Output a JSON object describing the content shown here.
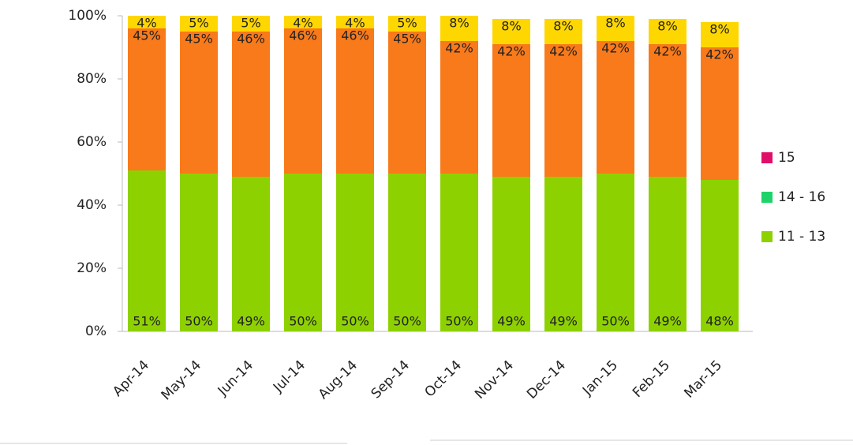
{
  "chart_data": {
    "type": "bar",
    "stacked": true,
    "categories": [
      "Apr-14",
      "May-14",
      "Jun-14",
      "Jul-14",
      "Aug-14",
      "Sep-14",
      "Oct-14",
      "Nov-14",
      "Dec-14",
      "Jan-15",
      "Feb-15",
      "Mar-15"
    ],
    "series": [
      {
        "color": "#8ed100",
        "values": [
          51,
          50,
          49,
          50,
          50,
          50,
          50,
          49,
          49,
          50,
          49,
          48
        ],
        "value_labels": [
          "51%",
          "50%",
          "49%",
          "50%",
          "50%",
          "50%",
          "50%",
          "49%",
          "49%",
          "50%",
          "49%",
          "48%"
        ]
      },
      {
        "color": "#f97a1a",
        "values": [
          45,
          45,
          46,
          46,
          46,
          45,
          42,
          42,
          42,
          42,
          42,
          42
        ],
        "value_labels": [
          "45%",
          "45%",
          "46%",
          "46%",
          "46%",
          "45%",
          "42%",
          "42%",
          "42%",
          "42%",
          "42%",
          "42%"
        ]
      },
      {
        "color": "#ffd700",
        "values": [
          4,
          5,
          5,
          4,
          4,
          5,
          8,
          8,
          8,
          8,
          8,
          8
        ],
        "value_labels": [
          "4%",
          "5%",
          "5%",
          "4%",
          "4%",
          "5%",
          "8%",
          "8%",
          "8%",
          "8%",
          "8%",
          "8%"
        ]
      }
    ],
    "ylim": [
      0,
      100
    ],
    "yticks": [
      {
        "value": 0,
        "label": "0%"
      },
      {
        "value": 20,
        "label": "20%"
      },
      {
        "value": 40,
        "label": "40%"
      },
      {
        "value": 60,
        "label": "60%"
      },
      {
        "value": 80,
        "label": "80%"
      },
      {
        "value": 100,
        "label": "100%"
      }
    ],
    "legend": [
      {
        "label": "15",
        "color": "#e0106a"
      },
      {
        "label": "14 - 16",
        "color": "#1fd36a"
      },
      {
        "label": "11 - 13",
        "color": "#8ed100"
      }
    ]
  }
}
